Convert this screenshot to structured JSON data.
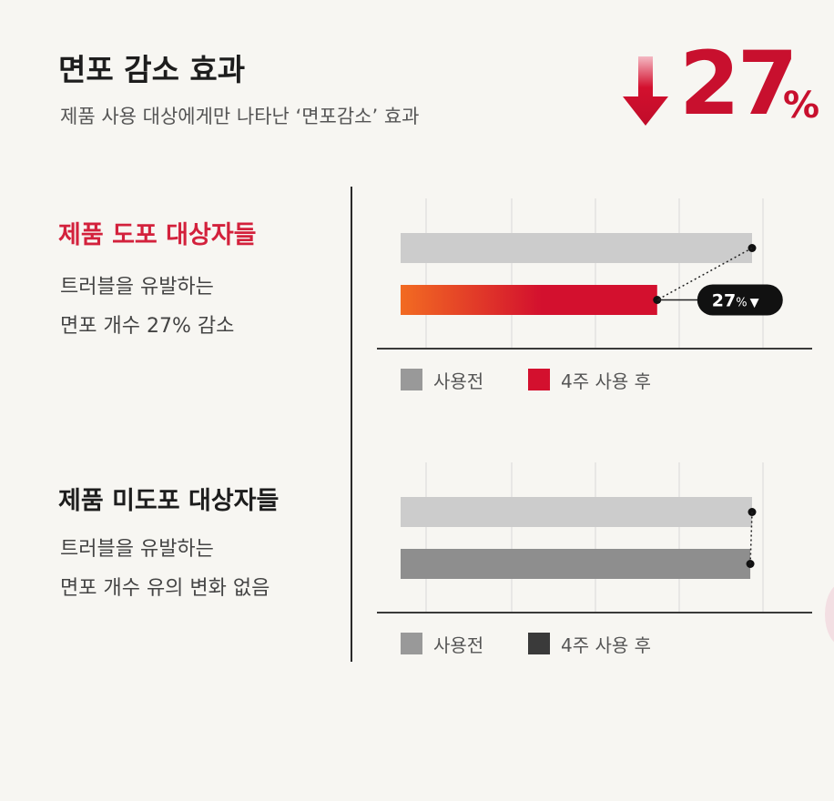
{
  "header": {
    "title": "면포 감소 효과",
    "subtitle": "제품 사용 대상에게만 나타난 ‘면포감소’ 효과",
    "headline_value": "27",
    "headline_unit": "%",
    "accent_color": "#c8102e"
  },
  "groups": [
    {
      "title": "제품 도포 대상자들",
      "title_color": "#d3213c",
      "desc_line1": "트러블을 유발하는",
      "desc_line2": "면포 개수 27% 감소"
    },
    {
      "title": "제품 미도포 대상자들",
      "title_color": "#1d1d1d",
      "desc_line1": "트러블을 유발하는",
      "desc_line2": "면포 개수 유의 변화 없음"
    }
  ],
  "chart_data": [
    {
      "type": "bar",
      "orientation": "horizontal",
      "grid": true,
      "xlim": [
        0,
        100
      ],
      "series": [
        {
          "name": "사용전",
          "values": [
            100
          ],
          "color": "#cccccc"
        },
        {
          "name": "4주 사용 후",
          "values": [
            73
          ],
          "color": "#d3102e",
          "gradient_from": "#f26b22"
        }
      ],
      "annotation": {
        "label": "27",
        "unit": "%",
        "symbol": "▼"
      },
      "legend": [
        {
          "label": "사용전",
          "color": "#999999"
        },
        {
          "label": "4주 사용 후",
          "color": "#d3102e"
        }
      ]
    },
    {
      "type": "bar",
      "orientation": "horizontal",
      "grid": true,
      "xlim": [
        0,
        100
      ],
      "series": [
        {
          "name": "사용전",
          "values": [
            100
          ],
          "color": "#cccccc"
        },
        {
          "name": "4주 사용 후",
          "values": [
            99.5
          ],
          "color": "#8e8e8e"
        }
      ],
      "legend": [
        {
          "label": "사용전",
          "color": "#999999"
        },
        {
          "label": "4주 사용 후",
          "color": "#3a3a3a"
        }
      ]
    }
  ]
}
